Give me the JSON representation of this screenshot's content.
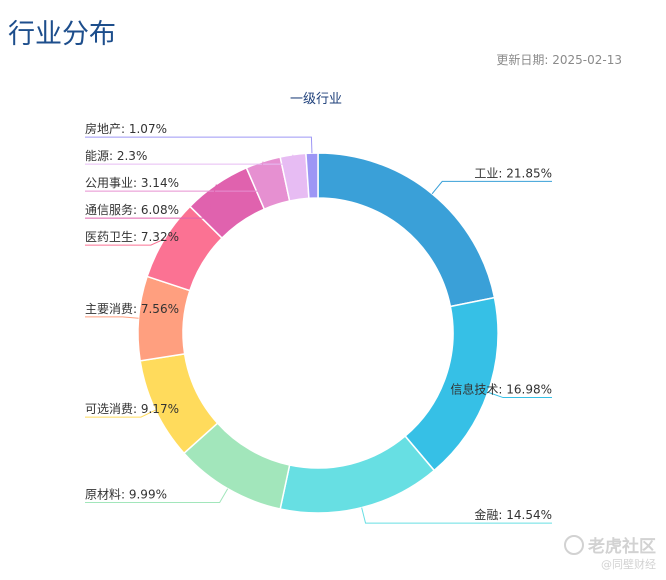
{
  "header": {
    "title": "行业分布",
    "update_label": "更新日期: 2025-02-13"
  },
  "watermark": {
    "brand": "老虎社区",
    "author": "@同壁财经"
  },
  "chart_data": {
    "type": "pie",
    "donut": true,
    "title": "一级行业",
    "start_angle_deg": 90,
    "direction": "clockwise",
    "series": [
      {
        "name": "工业",
        "value": 21.85,
        "label": "工业: 21.85%",
        "color": "#3aa0d8"
      },
      {
        "name": "信息技术",
        "value": 16.98,
        "label": "信息技术: 16.98%",
        "color": "#36c0e6"
      },
      {
        "name": "金融",
        "value": 14.54,
        "label": "金融: 14.54%",
        "color": "#67dfe3"
      },
      {
        "name": "原材料",
        "value": 9.99,
        "label": "原材料: 9.99%",
        "color": "#a2e6bb"
      },
      {
        "name": "可选消费",
        "value": 9.17,
        "label": "可选消费: 9.17%",
        "color": "#ffdb5c"
      },
      {
        "name": "主要消费",
        "value": 7.56,
        "label": "主要消费: 7.56%",
        "color": "#ff9f7f"
      },
      {
        "name": "医药卫生",
        "value": 7.32,
        "label": "医药卫生: 7.32%",
        "color": "#fb7293"
      },
      {
        "name": "通信服务",
        "value": 6.08,
        "label": "通信服务: 6.08%",
        "color": "#e062ae"
      },
      {
        "name": "公用事业",
        "value": 3.14,
        "label": "公用事业: 3.14%",
        "color": "#e690d1"
      },
      {
        "name": "能源",
        "value": 2.3,
        "label": "能源: 2.3%",
        "color": "#e7bcf3"
      },
      {
        "name": "房地产",
        "value": 1.07,
        "label": "房地产: 1.07%",
        "color": "#9d96f5"
      }
    ]
  }
}
